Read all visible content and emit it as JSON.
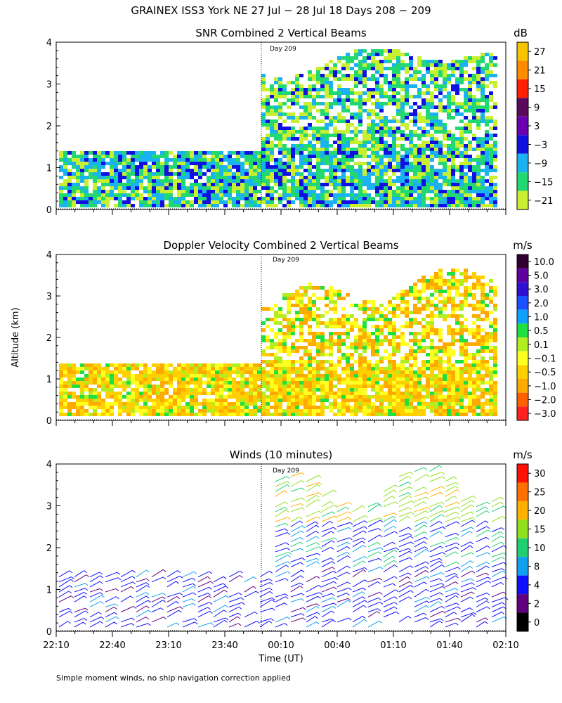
{
  "figure_title": "GRAINEX ISS3 York NE  27 Jul − 28 Jul 18 Days 208 − 209",
  "y_axis_label": "Altitude (km)",
  "x_axis_label": "Time (UT)",
  "footnote": "Simple moment winds, no ship navigation correction applied",
  "day_marker_label": "Day 209",
  "chart_data": [
    {
      "type": "heatmap",
      "title": "SNR Combined 2 Vertical Beams",
      "ylim": [
        0,
        4
      ],
      "yticks": [
        "0",
        "1",
        "2",
        "3",
        "4"
      ],
      "colorbar_unit": "dB",
      "colorbar_labels": [
        "27",
        "21",
        "15",
        "9",
        "3",
        "−3",
        "−9",
        "−15",
        "−21"
      ],
      "colors": [
        "#f7c400",
        "#ff8c00",
        "#ff2000",
        "#5a0a5a",
        "#6a00b0",
        "#1010e0",
        "#1ab2f0",
        "#22d870",
        "#c8f030"
      ]
    },
    {
      "type": "heatmap",
      "title": "Doppler Velocity Combined 2 Vertical Beams",
      "ylim": [
        0,
        4
      ],
      "yticks": [
        "0",
        "1",
        "2",
        "3",
        "4"
      ],
      "colorbar_unit": "m/s",
      "colorbar_labels": [
        "10.0",
        "5.0",
        "3.0",
        "2.0",
        "1.0",
        "0.5",
        "0.1",
        "−0.1",
        "−0.5",
        "−1.0",
        "−2.0",
        "−3.0"
      ],
      "colors": [
        "#300030",
        "#6000a0",
        "#3010d0",
        "#1a50ff",
        "#10a0ff",
        "#20e040",
        "#b0ee20",
        "#ffff20",
        "#ffd000",
        "#ffaa00",
        "#ff6000",
        "#ff2020"
      ]
    },
    {
      "type": "scatter",
      "title": "Winds (10 minutes)",
      "ylim": [
        0,
        4
      ],
      "yticks": [
        "0",
        "1",
        "2",
        "3",
        "4"
      ],
      "colorbar_unit": "m/s",
      "colorbar_labels": [
        "30",
        "25",
        "20",
        "15",
        "10",
        "8",
        "4",
        "2",
        "0"
      ],
      "colors": [
        "#ff1000",
        "#ff7000",
        "#ffb000",
        "#90e020",
        "#20d070",
        "#10a0f0",
        "#1010ff",
        "#600080",
        "#000000"
      ]
    }
  ],
  "x_ticks": [
    "22:10",
    "22:40",
    "23:10",
    "23:40",
    "00:10",
    "00:40",
    "01:10",
    "01:40",
    "02:10"
  ]
}
